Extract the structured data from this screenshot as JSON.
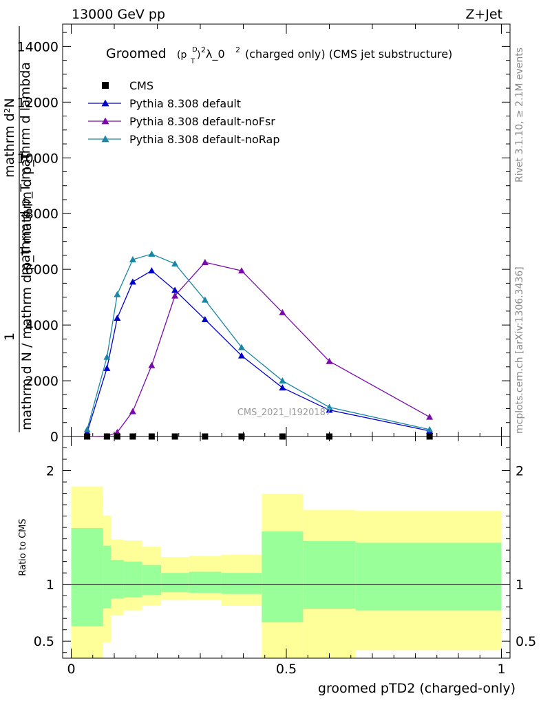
{
  "header": {
    "left": "13000 GeV pp",
    "right": "Z+Jet"
  },
  "side_labels": {
    "rivet": "Rivet 3.1.10, ≥ 2.1M events",
    "mcplots": "mcplots.cern.ch [arXiv:1306.3436]"
  },
  "watermark": "CMS_2021_I1920187",
  "plot_title": {
    "prefix": "Groomed",
    "p": "(p",
    "sup": "D",
    "sub": "T",
    "close": ")",
    "pow": "2",
    "lam": " λ_0",
    "lampow": "2",
    "rest": "(charged only) (CMS jet substructure)"
  },
  "yaxis_title": {
    "one": "1",
    "denominator": "mathrm d N / mathrm d p_T mathrm d p_T",
    "numerator_top": "mathrm d²N",
    "numerator_bottom": "mathrm d p_T mathrm d lambda"
  },
  "ratio_ylabel": "Ratio to CMS",
  "chart_data": {
    "type": "line",
    "xlabel": "groomed pTD2 (charged-only)",
    "xlim": [
      -0.02,
      1.02
    ],
    "ylim_main": [
      0,
      14800
    ],
    "ylim_ratio": [
      0.35,
      2.3
    ],
    "x_ticks": [
      {
        "value": 0,
        "label": "0"
      },
      {
        "value": 0.5,
        "label": "0.5"
      },
      {
        "value": 1,
        "label": "1"
      }
    ],
    "y_ticks": [
      {
        "value": 0,
        "label": "0"
      },
      {
        "value": 2000,
        "label": "2000"
      },
      {
        "value": 4000,
        "label": "4000"
      },
      {
        "value": 6000,
        "label": "6000"
      },
      {
        "value": 8000,
        "label": "8000"
      },
      {
        "value": 10000,
        "label": "10000"
      },
      {
        "value": 12000,
        "label": "12000"
      },
      {
        "value": 14000,
        "label": "14000"
      }
    ],
    "ratio_ticks": [
      {
        "value": 0.5,
        "label": "0.5"
      },
      {
        "value": 1,
        "label": "1"
      },
      {
        "value": 2,
        "label": "2"
      }
    ],
    "legend": [
      {
        "label": "CMS",
        "color": "#000000",
        "marker": "square"
      },
      {
        "label": "Pythia 8.308 default",
        "color": "#0000cc",
        "marker": "triangle"
      },
      {
        "label": "Pythia 8.308 default-noFsr",
        "color": "#7a0aaa",
        "marker": "triangle"
      },
      {
        "label": "Pythia 8.308 default-noRap",
        "color": "#1a86a6",
        "marker": "triangle"
      }
    ],
    "data": {
      "name": "CMS",
      "x": [
        0.037,
        0.083,
        0.107,
        0.143,
        0.187,
        0.241,
        0.311,
        0.396,
        0.491,
        0.6,
        0.833
      ],
      "y": [
        0,
        0,
        0,
        0,
        0,
        0,
        0,
        0,
        0,
        0,
        0
      ]
    },
    "series": [
      {
        "name": "Pythia 8.308 default",
        "color": "#0000cc",
        "x": [
          0.037,
          0.083,
          0.107,
          0.143,
          0.187,
          0.241,
          0.311,
          0.396,
          0.491,
          0.6,
          0.833
        ],
        "y": [
          150,
          2450,
          4250,
          5550,
          5950,
          5250,
          4200,
          2900,
          1750,
          950,
          200
        ]
      },
      {
        "name": "Pythia 8.308 default-noFsr",
        "color": "#7a0aaa",
        "x": [
          0.037,
          0.083,
          0.107,
          0.143,
          0.187,
          0.241,
          0.311,
          0.396,
          0.491,
          0.6,
          0.833
        ],
        "y": [
          0,
          10,
          150,
          900,
          2550,
          5050,
          6250,
          5950,
          4450,
          2700,
          700
        ]
      },
      {
        "name": "Pythia 8.308 default-noRap",
        "color": "#1a86a6",
        "x": [
          0.037,
          0.083,
          0.107,
          0.143,
          0.187,
          0.241,
          0.311,
          0.396,
          0.491,
          0.6,
          0.833
        ],
        "y": [
          250,
          2850,
          5100,
          6350,
          6550,
          6200,
          4900,
          3200,
          2000,
          1050,
          250
        ]
      }
    ],
    "ratio_bands": {
      "edges": [
        0,
        0.074,
        0.092,
        0.122,
        0.165,
        0.209,
        0.274,
        0.349,
        0.443,
        0.539,
        0.661,
        1.0
      ],
      "green_lo": [
        0.63,
        0.79,
        0.875,
        0.885,
        0.905,
        0.93,
        0.925,
        0.915,
        0.665,
        0.785,
        0.77
      ],
      "green_hi": [
        1.495,
        1.34,
        1.215,
        1.2,
        1.17,
        1.1,
        1.11,
        1.1,
        1.465,
        1.38,
        1.365
      ],
      "yellow_lo": [
        0.35,
        0.49,
        0.725,
        0.77,
        0.815,
        0.865,
        0.86,
        0.81,
        0.35,
        0.35,
        0.42
      ],
      "yellow_hi": [
        1.86,
        1.605,
        1.395,
        1.385,
        1.33,
        1.24,
        1.25,
        1.26,
        1.795,
        1.655,
        1.645
      ]
    }
  }
}
